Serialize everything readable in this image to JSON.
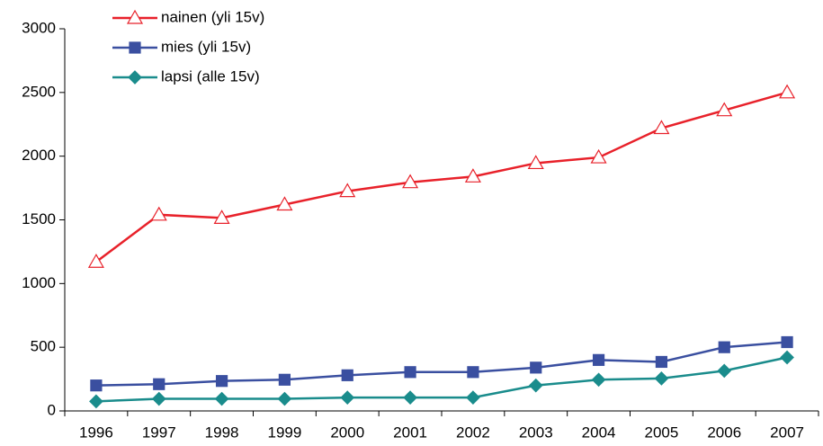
{
  "chart_data": {
    "type": "line",
    "categories": [
      "1996",
      "1997",
      "1998",
      "1999",
      "2000",
      "2001",
      "2002",
      "2003",
      "2004",
      "2005",
      "2006",
      "2007"
    ],
    "series": [
      {
        "name": "nainen (yli 15v)",
        "color": "#e8212a",
        "marker": "triangle-open",
        "values": [
          1170,
          1540,
          1515,
          1620,
          1725,
          1795,
          1840,
          1945,
          1990,
          2220,
          2360,
          2500
        ]
      },
      {
        "name": "mies (yli 15v)",
        "color": "#3a4fa0",
        "marker": "square",
        "values": [
          200,
          210,
          235,
          245,
          280,
          305,
          305,
          340,
          400,
          385,
          500,
          540
        ]
      },
      {
        "name": "lapsi (alle 15v)",
        "color": "#1a8c8c",
        "marker": "diamond",
        "values": [
          75,
          95,
          95,
          95,
          105,
          105,
          105,
          200,
          245,
          255,
          315,
          420
        ]
      }
    ],
    "ylim": [
      0,
      3000
    ],
    "yticks": [
      0,
      500,
      1000,
      1500,
      2000,
      2500,
      3000
    ],
    "grid": false,
    "legend": "top-left"
  }
}
